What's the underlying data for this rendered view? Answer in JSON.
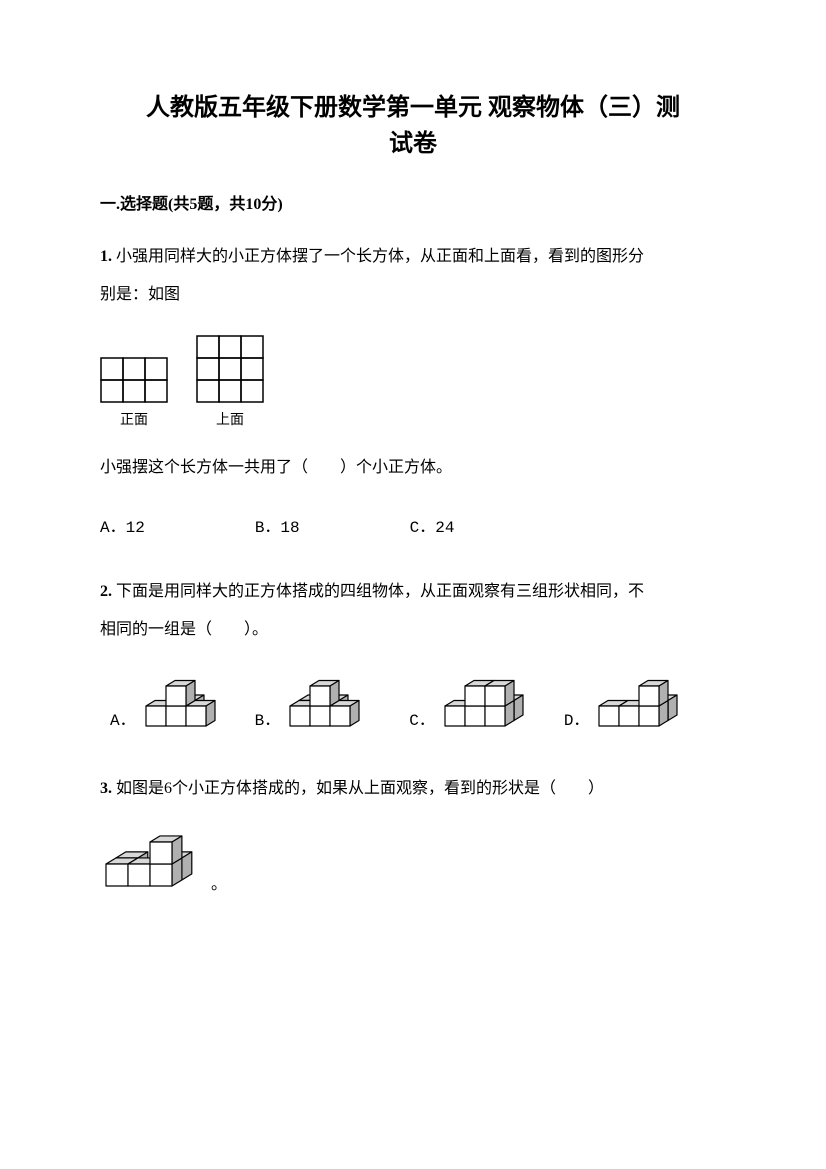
{
  "title_line1": "人教版五年级下册数学第一单元 观察物体（三）测",
  "title_line2": "试卷",
  "section1": {
    "header": "一.选择题(共5题，共10分)",
    "q1": {
      "num": "1.",
      "text_line1": "小强用同样大的小正方体摆了一个长方体，从正面和上面看，看到的图形分",
      "text_line2": "别是：如图",
      "front_label": "正面",
      "top_label": "上面",
      "mid_text": "小强摆这个长方体一共用了（　　）个小正方体。",
      "opt_a": "A．12",
      "opt_b": "B．18",
      "opt_c": "C．24",
      "front_grid": {
        "cols": 3,
        "rows": 2,
        "cell": 22
      },
      "top_grid": {
        "cols": 3,
        "rows": 3,
        "cell": 22
      }
    },
    "q2": {
      "num": "2.",
      "text_line1": "下面是用同样大的正方体搭成的四组物体，从正面观察有三组形状相同，不",
      "text_line2": "相同的一组是（　　）。",
      "options": {
        "a": "A．",
        "b": "B．",
        "c": "C．",
        "d": "D．"
      }
    },
    "q3": {
      "num": "3.",
      "text": "如图是6个小正方体搭成的，如果从上面观察，看到的形状是（　　）"
    }
  },
  "colors": {
    "stroke": "#000000",
    "cube_light": "#ffffff",
    "cube_mid": "#d8d8d8",
    "cube_dark": "#b0b0b0"
  }
}
